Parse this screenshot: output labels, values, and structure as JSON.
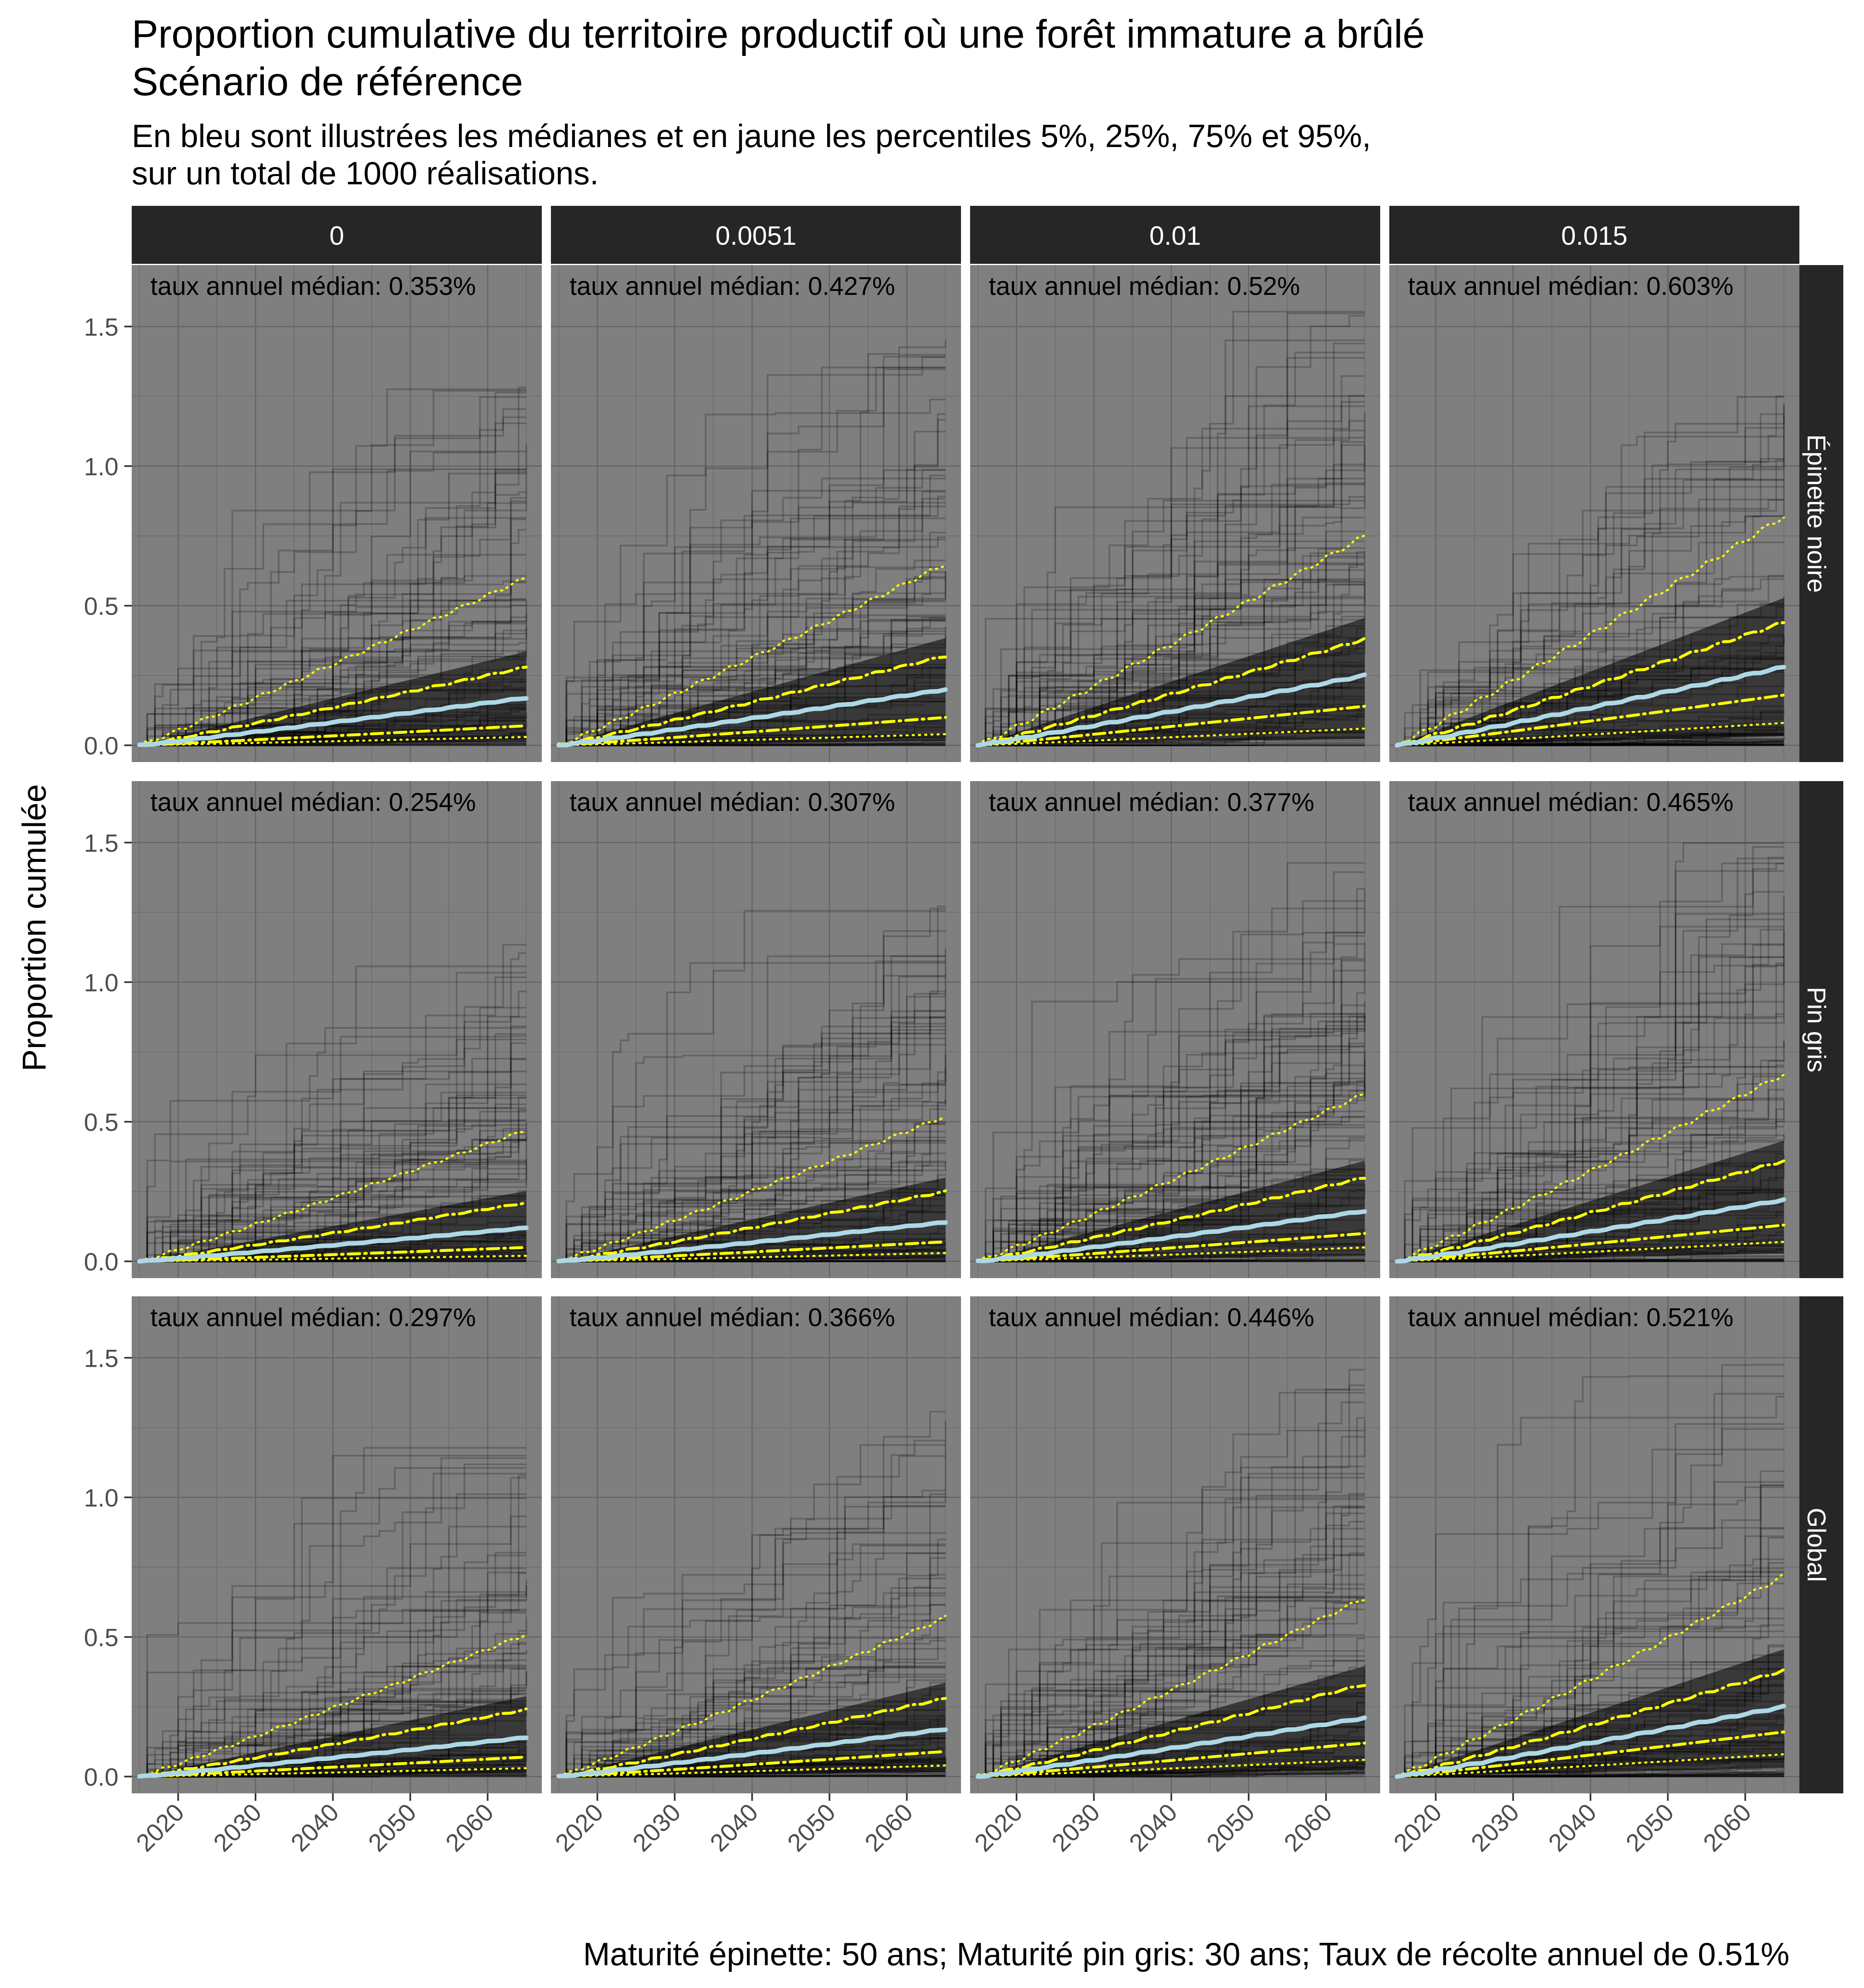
{
  "chart_data": {
    "type": "line",
    "title_lines": [
      "Proportion cumulative du territoire productif où une forêt immature a brûlé",
      "Scénario de référence"
    ],
    "subtitle_lines": [
      "En bleu sont illustrées les médianes et en jaune les percentiles 5%, 25%, 75% et 95%,",
      "sur un total de 1000 réalisations."
    ],
    "caption": "Maturité épinette: 50 ans; Maturité pin gris: 30 ans; Taux de récolte annuel de 0.51%",
    "ylabel": "Proportion cumulée",
    "xlabel": "",
    "col_facets": [
      "0",
      "0.0051",
      "0.01",
      "0.015"
    ],
    "row_facets": [
      "Épinette noire",
      "Pin gris",
      "Global"
    ],
    "x_ticks": [
      2020,
      2030,
      2040,
      2050,
      2060
    ],
    "y_ticks": [
      "0.0",
      "0.5",
      "1.0",
      "1.5"
    ],
    "xlim": [
      2014,
      2067
    ],
    "ylim": [
      -0.06,
      1.72
    ],
    "x_range": [
      2015,
      2065
    ],
    "n_realisations": 1000,
    "annotation_prefix": "taux annuel médian: ",
    "median_color": "#add8e6",
    "percentile_color": "#ffff00",
    "panel_background": "#7f7f7f",
    "strip_background": "#262626",
    "panels": [
      {
        "row": "Épinette noire",
        "col": "0",
        "label": "0.353%",
        "p5": 0.03,
        "p25": 0.07,
        "median": 0.17,
        "p75": 0.28,
        "p95": 0.6,
        "max": 1.35
      },
      {
        "row": "Épinette noire",
        "col": "0.0051",
        "label": "0.427%",
        "p5": 0.04,
        "p25": 0.1,
        "median": 0.2,
        "p75": 0.32,
        "p95": 0.65,
        "max": 1.5
      },
      {
        "row": "Épinette noire",
        "col": "0.01",
        "label": "0.52%",
        "p5": 0.06,
        "p25": 0.14,
        "median": 0.25,
        "p75": 0.38,
        "p95": 0.75,
        "max": 1.6
      },
      {
        "row": "Épinette noire",
        "col": "0.015",
        "label": "0.603%",
        "p5": 0.08,
        "p25": 0.18,
        "median": 0.28,
        "p75": 0.44,
        "p95": 0.82,
        "max": 1.28
      },
      {
        "row": "Pin gris",
        "col": "0",
        "label": "0.254%",
        "p5": 0.02,
        "p25": 0.05,
        "median": 0.12,
        "p75": 0.21,
        "p95": 0.47,
        "max": 1.18
      },
      {
        "row": "Pin gris",
        "col": "0.0051",
        "label": "0.307%",
        "p5": 0.03,
        "p25": 0.07,
        "median": 0.14,
        "p75": 0.25,
        "p95": 0.52,
        "max": 1.35
      },
      {
        "row": "Pin gris",
        "col": "0.01",
        "label": "0.377%",
        "p5": 0.05,
        "p25": 0.1,
        "median": 0.18,
        "p75": 0.3,
        "p95": 0.6,
        "max": 1.48
      },
      {
        "row": "Pin gris",
        "col": "0.015",
        "label": "0.465%",
        "p5": 0.07,
        "p25": 0.13,
        "median": 0.22,
        "p75": 0.36,
        "p95": 0.67,
        "max": 1.56
      },
      {
        "row": "Global",
        "col": "0",
        "label": "0.297%",
        "p5": 0.03,
        "p25": 0.07,
        "median": 0.14,
        "p75": 0.24,
        "p95": 0.51,
        "max": 1.22
      },
      {
        "row": "Global",
        "col": "0.0051",
        "label": "0.366%",
        "p5": 0.04,
        "p25": 0.09,
        "median": 0.17,
        "p75": 0.28,
        "p95": 0.57,
        "max": 1.35
      },
      {
        "row": "Global",
        "col": "0.01",
        "label": "0.446%",
        "p5": 0.06,
        "p25": 0.12,
        "median": 0.21,
        "p75": 0.33,
        "p95": 0.64,
        "max": 1.5
      },
      {
        "row": "Global",
        "col": "0.015",
        "label": "0.521%",
        "p5": 0.08,
        "p25": 0.16,
        "median": 0.25,
        "p75": 0.38,
        "p95": 0.72,
        "max": 1.52
      }
    ]
  }
}
